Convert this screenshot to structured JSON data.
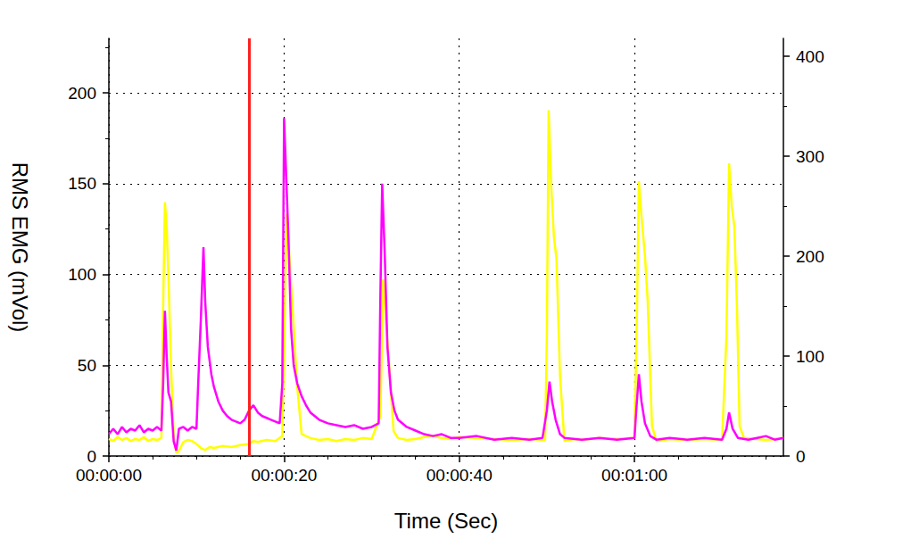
{
  "chart_data": {
    "type": "line",
    "x_label": "Time (Sec)",
    "y_label": "RMS EMG (mVol)",
    "xlim": [
      0,
      77
    ],
    "xticks": [
      {
        "value": 0,
        "label": "00:00:00"
      },
      {
        "value": 20,
        "label": "00:00:20"
      },
      {
        "value": 40,
        "label": "00:00:40"
      },
      {
        "value": 60,
        "label": "00:01:00"
      }
    ],
    "ylim": [
      0,
      230
    ],
    "yticks": [
      0,
      50,
      100,
      150,
      200
    ],
    "y2lim": [
      0,
      418
    ],
    "y2ticks": [
      0,
      100,
      200,
      300,
      400
    ],
    "grid": true,
    "vertical_line": {
      "x": 16,
      "color": "#ff2020"
    },
    "series": [
      {
        "color": "#ff00ff",
        "x": [
          0,
          0.5,
          1,
          1.5,
          2,
          2.5,
          3,
          3.5,
          4,
          4.5,
          5,
          5.5,
          6,
          6.2,
          6.4,
          6.6,
          6.8,
          7.1,
          7.4,
          7.7,
          8,
          8.5,
          9,
          9.5,
          10,
          10.2,
          10.5,
          10.8,
          11,
          11.3,
          11.7,
          12,
          12.5,
          13,
          13.5,
          14,
          14.5,
          15,
          15.5,
          16,
          16.5,
          17,
          17.5,
          18,
          18.5,
          19,
          19.5,
          19.8,
          20,
          20.2,
          20.5,
          20.8,
          21.1,
          21.5,
          22,
          22.5,
          23,
          24,
          25,
          26,
          27,
          28,
          29,
          30,
          30.8,
          31,
          31.2,
          31.5,
          31.8,
          32.2,
          32.6,
          33,
          34,
          35,
          36,
          37,
          38,
          39,
          40,
          42,
          44,
          46,
          48,
          49.5,
          50,
          50.3,
          50.6,
          51,
          51.5,
          52,
          54,
          56,
          58,
          60,
          60.2,
          60.5,
          60.8,
          61.2,
          61.8,
          62.5,
          64,
          66,
          68,
          70,
          70.5,
          70.8,
          71.2,
          71.8,
          73,
          74,
          75,
          76,
          77
        ],
        "values": [
          12,
          15,
          12,
          16,
          13,
          15,
          14,
          17,
          13,
          15,
          14,
          16,
          14,
          40,
          80,
          55,
          35,
          30,
          8,
          3,
          15,
          16,
          14,
          16,
          15,
          40,
          75,
          115,
          85,
          60,
          45,
          38,
          30,
          25,
          22,
          20,
          19,
          18,
          20,
          25,
          28,
          24,
          22,
          21,
          20,
          19,
          18,
          40,
          186,
          160,
          120,
          70,
          50,
          40,
          33,
          28,
          24,
          20,
          18,
          17,
          16,
          17,
          15,
          16,
          18,
          90,
          150,
          110,
          60,
          35,
          25,
          20,
          16,
          14,
          12,
          11,
          12,
          10,
          10,
          11,
          9,
          10,
          9,
          10,
          25,
          41,
          30,
          20,
          12,
          10,
          9,
          10,
          9,
          10,
          25,
          45,
          30,
          18,
          11,
          9,
          10,
          9,
          10,
          9,
          15,
          24,
          15,
          10,
          9,
          10,
          11,
          9,
          10
        ]
      },
      {
        "color": "#ffff00",
        "axis": "y2",
        "x": [
          0,
          0.5,
          1,
          1.5,
          2,
          2.5,
          3,
          3.5,
          4,
          4.5,
          5,
          5.5,
          6,
          6.2,
          6.4,
          6.6,
          6.8,
          7.1,
          7.4,
          7.7,
          8,
          8.5,
          9,
          9.5,
          10,
          10.5,
          11,
          11.5,
          12,
          13,
          14,
          15,
          16,
          16.5,
          17,
          18,
          19,
          19.8,
          20.1,
          20.3,
          20.6,
          21,
          21.5,
          22,
          23,
          24,
          25,
          26,
          27,
          28,
          29,
          30,
          31,
          31.3,
          31.6,
          32,
          32.5,
          33,
          34,
          35,
          36,
          37,
          38,
          39,
          40,
          42,
          44,
          46,
          48,
          49.8,
          50,
          50.2,
          50.5,
          50.8,
          51.1,
          51.5,
          52,
          53,
          54,
          56,
          58,
          60,
          60.3,
          60.5,
          60.8,
          61.2,
          61.5,
          62,
          62.5,
          64,
          66,
          68,
          70,
          70.5,
          70.8,
          71.1,
          71.4,
          71.7,
          72,
          72.5,
          74,
          75,
          76,
          77
        ],
        "values": [
          17,
          15,
          19,
          16,
          18,
          15,
          17,
          16,
          19,
          15,
          17,
          16,
          18,
          150,
          254,
          230,
          180,
          90,
          20,
          3,
          5,
          14,
          16,
          15,
          12,
          8,
          6,
          9,
          8,
          10,
          9,
          11,
          12,
          15,
          14,
          16,
          15,
          20,
          150,
          242,
          200,
          144,
          70,
          22,
          18,
          16,
          17,
          15,
          17,
          16,
          18,
          17,
          40,
          177,
          140,
          90,
          25,
          18,
          16,
          17,
          19,
          20,
          18,
          17,
          19,
          18,
          17,
          16,
          17,
          16,
          120,
          346,
          270,
          220,
          197,
          80,
          15,
          17,
          16,
          18,
          17,
          18,
          150,
          275,
          240,
          200,
          157,
          30,
          15,
          17,
          16,
          17,
          16,
          120,
          293,
          250,
          230,
          150,
          30,
          18,
          17,
          16,
          17,
          18
        ]
      }
    ]
  }
}
